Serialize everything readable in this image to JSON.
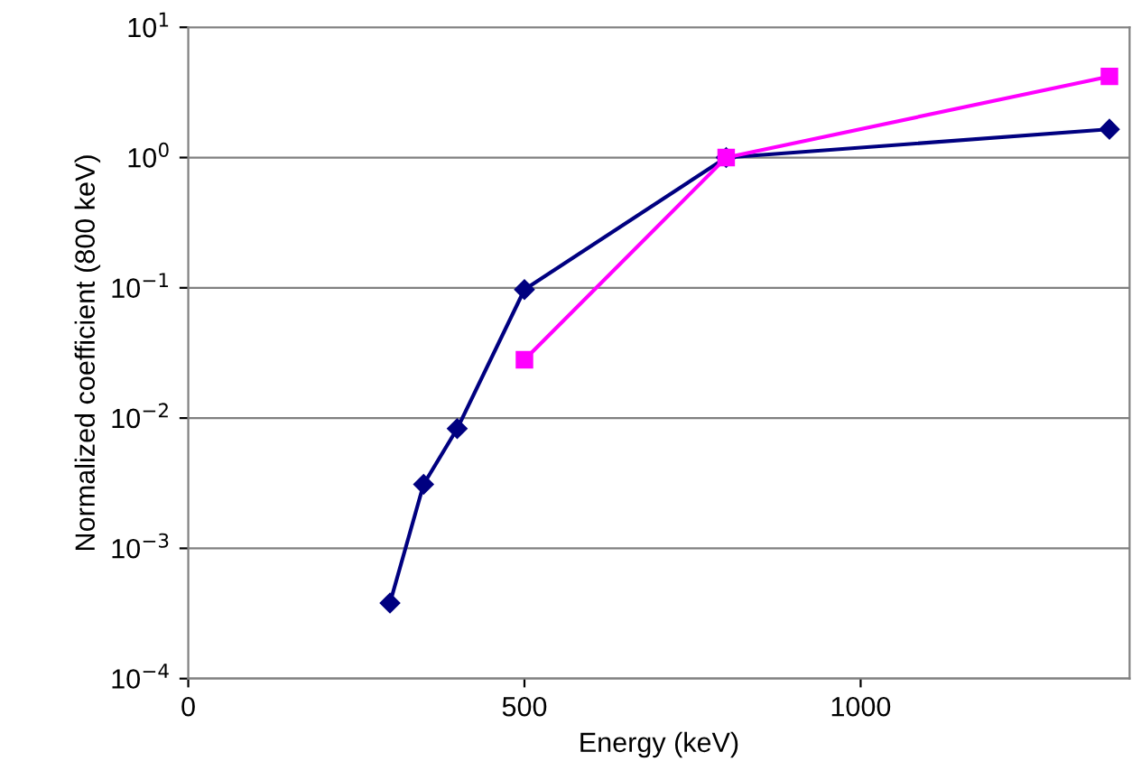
{
  "chart_data": {
    "type": "line",
    "xlabel": "Energy (keV)",
    "ylabel": "Normalized coefficient (800 keV)",
    "log": "y",
    "grid": "y",
    "xlim": [
      0,
      1400
    ],
    "xticks": [
      0,
      500,
      1000
    ],
    "ylim": [
      0.0001,
      10
    ],
    "yticks": [
      {
        "value": 0.0001,
        "label": "10$^{−4}$"
      },
      {
        "value": 0.001,
        "label": "10$^{−3}$"
      },
      {
        "value": 0.01,
        "label": "10$^{−2}$"
      },
      {
        "value": 0.1,
        "label": "10$^{−1}$"
      },
      {
        "value": 1,
        "label": "10$^{0}$"
      },
      {
        "value": 10,
        "label": "10$^{1}$"
      }
    ],
    "series": [
      {
        "color": "#000080",
        "marker": "diamond",
        "x": [
          300,
          350,
          400,
          500,
          800,
          1370
        ],
        "values": [
          0.00038,
          0.0031,
          0.0083,
          0.097,
          1.0,
          1.65
        ]
      },
      {
        "color": "#ff00ff",
        "marker": "square",
        "x": [
          500,
          800,
          1370
        ],
        "values": [
          0.028,
          1.0,
          4.2
        ]
      }
    ]
  }
}
